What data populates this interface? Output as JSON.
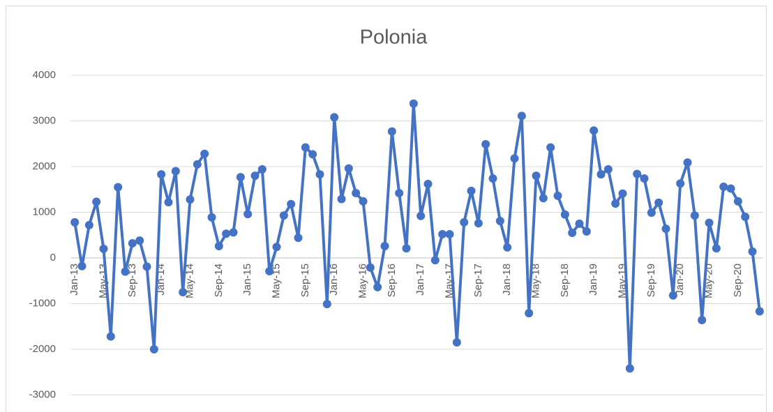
{
  "chart_data": {
    "type": "line",
    "title": "Polonia",
    "categories": [
      "Jan-13",
      null,
      null,
      null,
      "May-13",
      null,
      null,
      null,
      "Sep-13",
      null,
      null,
      null,
      "Jan-14",
      null,
      null,
      null,
      "May-14",
      null,
      null,
      null,
      "Sep-14",
      null,
      null,
      null,
      "Jan-15",
      null,
      null,
      null,
      "May-15",
      null,
      null,
      null,
      "Sep-15",
      null,
      null,
      null,
      "Jan-16",
      null,
      null,
      null,
      "May-16",
      null,
      null,
      null,
      "Sep-16",
      null,
      null,
      null,
      "Jan-17",
      null,
      null,
      null,
      "May-17",
      null,
      null,
      null,
      "Sep-17",
      null,
      null,
      null,
      "Jan-18",
      null,
      null,
      null,
      "May-18",
      null,
      null,
      null,
      "Sep-18",
      null,
      null,
      null,
      "Jan-19",
      null,
      null,
      null,
      "May-19",
      null,
      null,
      null,
      "Sep-19",
      null,
      null,
      null,
      "Jan-20",
      null,
      null,
      null,
      "May-20",
      null,
      null,
      null,
      "Sep-20",
      null,
      null,
      null
    ],
    "series": [
      {
        "color": "#4472c4",
        "values": [
          780,
          -180,
          720,
          1230,
          200,
          -1720,
          1550,
          -300,
          320,
          380,
          -190,
          -2000,
          1830,
          1220,
          1900,
          -750,
          1280,
          2050,
          2280,
          890,
          260,
          530,
          560,
          1770,
          960,
          1800,
          1940,
          -290,
          240,
          930,
          1180,
          440,
          2420,
          2270,
          1830,
          -1010,
          3080,
          1290,
          1960,
          1420,
          1240,
          -210,
          -640,
          260,
          2770,
          1420,
          210,
          3380,
          920,
          1620,
          -50,
          520,
          520,
          -1850,
          780,
          1470,
          760,
          2490,
          1740,
          810,
          230,
          2180,
          3110,
          -1210,
          1800,
          1310,
          2420,
          1360,
          950,
          550,
          750,
          580,
          2790,
          1830,
          1940,
          1190,
          1410,
          -2420,
          1840,
          1740,
          990,
          1210,
          640,
          -820,
          1630,
          2090,
          930,
          -1360,
          770,
          210,
          1560,
          1520,
          1240,
          900,
          140,
          -1170
        ]
      }
    ],
    "ylim": [
      -3000,
      4000
    ],
    "yticks": [
      -3000,
      -2000,
      -1000,
      0,
      1000,
      2000,
      3000,
      4000
    ],
    "grid": true
  }
}
